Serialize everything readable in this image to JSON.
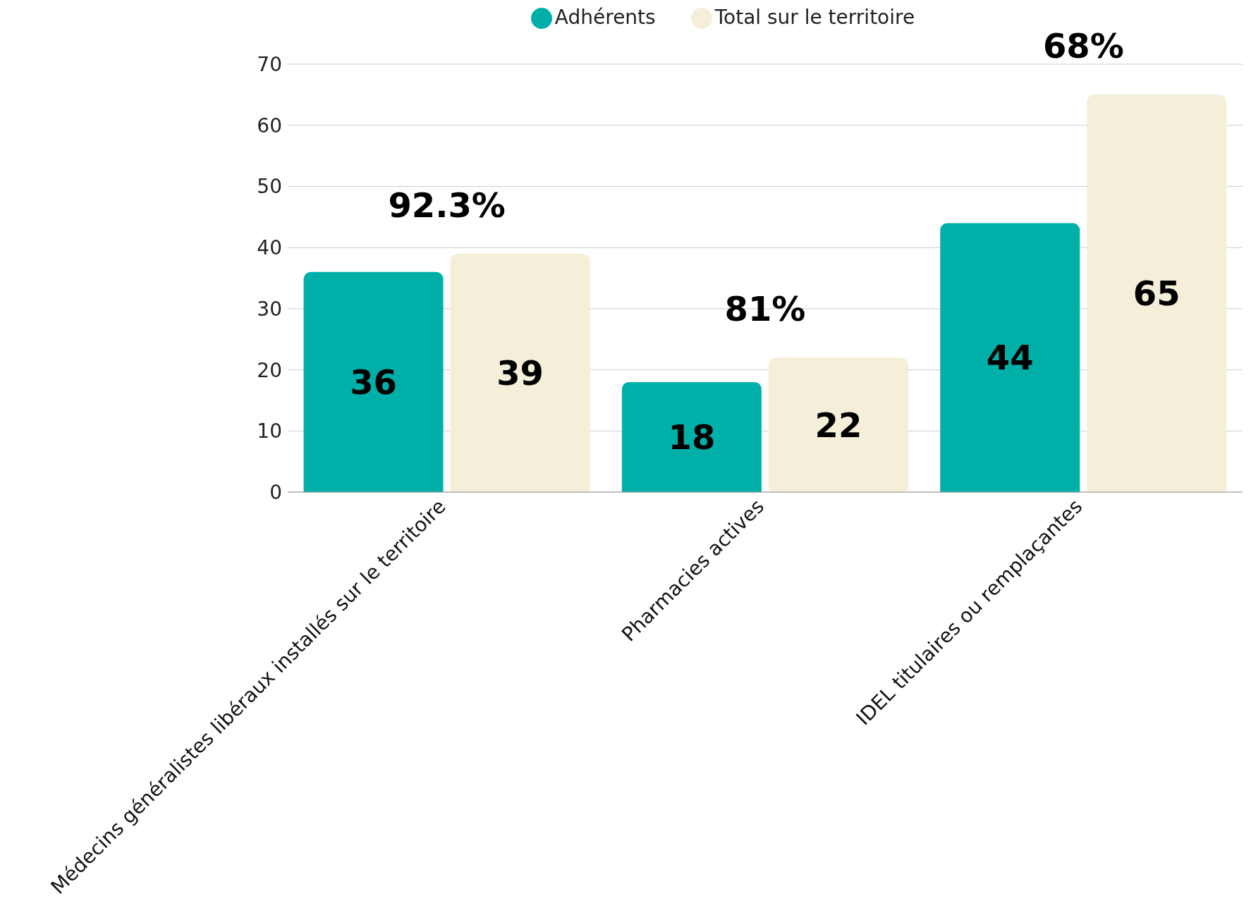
{
  "chart_data": {
    "type": "bar",
    "categories": [
      "Médecins généralistes libéraux installés sur le territoire",
      "Pharmacies actives",
      "IDEL titulaires ou remplaçantes"
    ],
    "series": [
      {
        "name": "Adhérents",
        "color": "#00b0a8",
        "values": [
          36,
          18,
          44
        ]
      },
      {
        "name": "Total sur le territoire",
        "color": "#f5eed9",
        "values": [
          39,
          22,
          65
        ]
      }
    ],
    "ylim": [
      0,
      70
    ],
    "yticks": [
      0,
      10,
      20,
      30,
      40,
      50,
      60,
      70
    ],
    "grid": "y",
    "legend": "top",
    "data_labels": true,
    "annotations": [
      "92.3%",
      "81%",
      "68%"
    ]
  }
}
